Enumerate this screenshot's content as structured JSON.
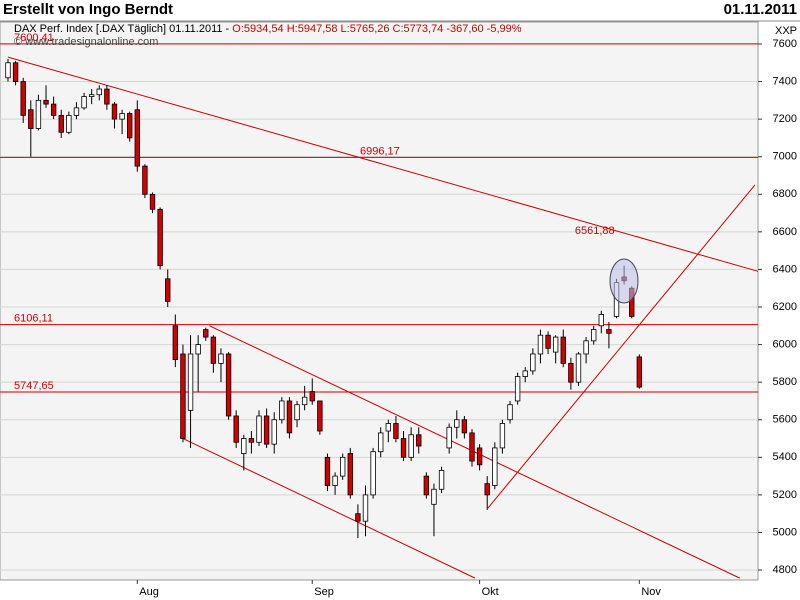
{
  "header": {
    "title": "Erstellt von Ingo Berndt",
    "date": "01.11.2011"
  },
  "chart_data": {
    "type": "candlestick",
    "info": "DAX Perf. Index [.DAX Täglich] 01.11.2011 -",
    "info_values": "O:5934,54 H:5947,58 L:5765,26 C:5773,74 -367,60 -5,99%",
    "watermark": "© www.tradesignalonline.com",
    "y_unit": "XXP",
    "categories": [
      null,
      null,
      null,
      null,
      null,
      null,
      null,
      null,
      null,
      null,
      null,
      null,
      null,
      null,
      null,
      null,
      null,
      "Aug",
      null,
      null,
      null,
      null,
      null,
      null,
      null,
      null,
      null,
      null,
      null,
      null,
      null,
      null,
      null,
      null,
      null,
      null,
      null,
      null,
      null,
      null,
      "Sep",
      null,
      null,
      null,
      null,
      null,
      null,
      null,
      null,
      null,
      null,
      null,
      null,
      null,
      null,
      null,
      null,
      null,
      null,
      null,
      null,
      null,
      "Okt",
      null,
      null,
      null,
      null,
      null,
      null,
      null,
      null,
      null,
      null,
      null,
      null,
      null,
      null,
      null,
      null,
      null,
      null,
      null,
      null,
      "Nov"
    ],
    "open": [
      7420,
      7500,
      7400,
      7250,
      7150,
      7300,
      7280,
      7220,
      7130,
      7220,
      7260,
      7320,
      7330,
      7360,
      7280,
      7200,
      7230,
      7250,
      6950,
      6800,
      6720,
      6350,
      6100,
      5950,
      5650,
      5950,
      6080,
      6040,
      5900,
      5950,
      5620,
      5420,
      5500,
      5480,
      5620,
      5470,
      5600,
      5700,
      5600,
      5680,
      5750,
      5700,
      5400,
      5250,
      5300,
      5420,
      5100,
      5060,
      5200,
      5430,
      5540,
      5580,
      5500,
      5400,
      5520,
      5300,
      5150,
      5230,
      5450,
      5560,
      5600,
      5530,
      5450,
      5260,
      5250,
      5450,
      5600,
      5700,
      5830,
      5860,
      5950,
      6050,
      5960,
      6040,
      5900,
      5800,
      5950,
      6020,
      6100,
      6080,
      6150,
      6360,
      6300,
      5934.54
    ],
    "high": [
      7520,
      7510,
      7420,
      7300,
      7330,
      7380,
      7320,
      7250,
      7240,
      7290,
      7340,
      7360,
      7380,
      7380,
      7290,
      7250,
      7240,
      7300,
      6960,
      6810,
      6730,
      6400,
      6160,
      6000,
      6050,
      6050,
      6090,
      6050,
      5980,
      5960,
      5650,
      5520,
      5540,
      5650,
      5660,
      5640,
      5720,
      5720,
      5700,
      5780,
      5820,
      5700,
      5420,
      5320,
      5420,
      5450,
      5150,
      5250,
      5450,
      5560,
      5600,
      5620,
      5540,
      5560,
      5560,
      5320,
      5260,
      5350,
      5580,
      5650,
      5620,
      5550,
      5470,
      5300,
      5480,
      5600,
      5700,
      5850,
      5880,
      5980,
      6080,
      6070,
      6050,
      6080,
      5930,
      5960,
      6040,
      6100,
      6180,
      6120,
      6350,
      6420,
      6310,
      5947.58
    ],
    "low": [
      7400,
      7380,
      7180,
      7000,
      7140,
      7260,
      7200,
      7100,
      7120,
      7200,
      7250,
      7280,
      7300,
      7250,
      7150,
      7120,
      7080,
      6920,
      6780,
      6700,
      6400,
      6200,
      5880,
      5480,
      5450,
      5750,
      6020,
      5850,
      5800,
      5600,
      5450,
      5330,
      5420,
      5460,
      5450,
      5420,
      5580,
      5500,
      5560,
      5650,
      5680,
      5520,
      5220,
      5200,
      5280,
      5180,
      4970,
      4980,
      5180,
      5400,
      5480,
      5480,
      5380,
      5380,
      5420,
      5180,
      4980,
      5210,
      5420,
      5500,
      5500,
      5350,
      5330,
      5120,
      5230,
      5420,
      5580,
      5680,
      5800,
      5840,
      5900,
      5950,
      5900,
      5880,
      5760,
      5780,
      5900,
      6000,
      6060,
      5980,
      6140,
      6320,
      6140,
      5765.26
    ],
    "close": [
      7500,
      7400,
      7220,
      7150,
      7300,
      7280,
      7220,
      7130,
      7220,
      7260,
      7320,
      7330,
      7360,
      7280,
      7200,
      7230,
      7100,
      6950,
      6800,
      6720,
      6420,
      6230,
      5920,
      5500,
      5950,
      6000,
      6040,
      5900,
      5950,
      5620,
      5480,
      5500,
      5480,
      5620,
      5470,
      5600,
      5700,
      5530,
      5680,
      5720,
      5700,
      5540,
      5250,
      5300,
      5400,
      5200,
      5060,
      5200,
      5430,
      5530,
      5580,
      5500,
      5400,
      5520,
      5460,
      5200,
      5230,
      5330,
      5560,
      5600,
      5530,
      5380,
      5360,
      5200,
      5450,
      5580,
      5680,
      5830,
      5860,
      5950,
      6050,
      5980,
      6040,
      5900,
      5800,
      5950,
      6020,
      6080,
      6160,
      6060,
      6330,
      6340,
      6150,
      5773.74
    ],
    "up_color": "#ffffff",
    "down_color": "#d40000",
    "xlim": [
      -1.05,
      98.6
    ],
    "ylim": [
      4747,
      7717
    ],
    "yticks": [
      4800,
      5000,
      5200,
      5400,
      5600,
      5800,
      6000,
      6200,
      6400,
      6600,
      6800,
      7000,
      7200,
      7400,
      7600
    ],
    "grid": true,
    "levels": [
      {
        "value": 7600.41,
        "label": "7600,41"
      },
      {
        "value": 6996.17,
        "label": "6996,17"
      },
      {
        "value": 6106.11,
        "label": "6106,11"
      },
      {
        "value": 5747.65,
        "label": "5747,65"
      }
    ],
    "level_color": "#cc0000",
    "trendlines": [
      {
        "x": [
          0,
          98.6
        ],
        "y": [
          7530,
          6390
        ],
        "label": {
          "value": 6561.88,
          "label": "6561,88"
        }
      },
      {
        "x": [
          26.5,
          96.2
        ],
        "y": [
          6100,
          4757
        ]
      },
      {
        "x": [
          22.6,
          61.4
        ],
        "y": [
          5508,
          4757
        ]
      },
      {
        "x": [
          63.1,
          98.2
        ],
        "y": [
          5130,
          6850
        ]
      }
    ]
  }
}
